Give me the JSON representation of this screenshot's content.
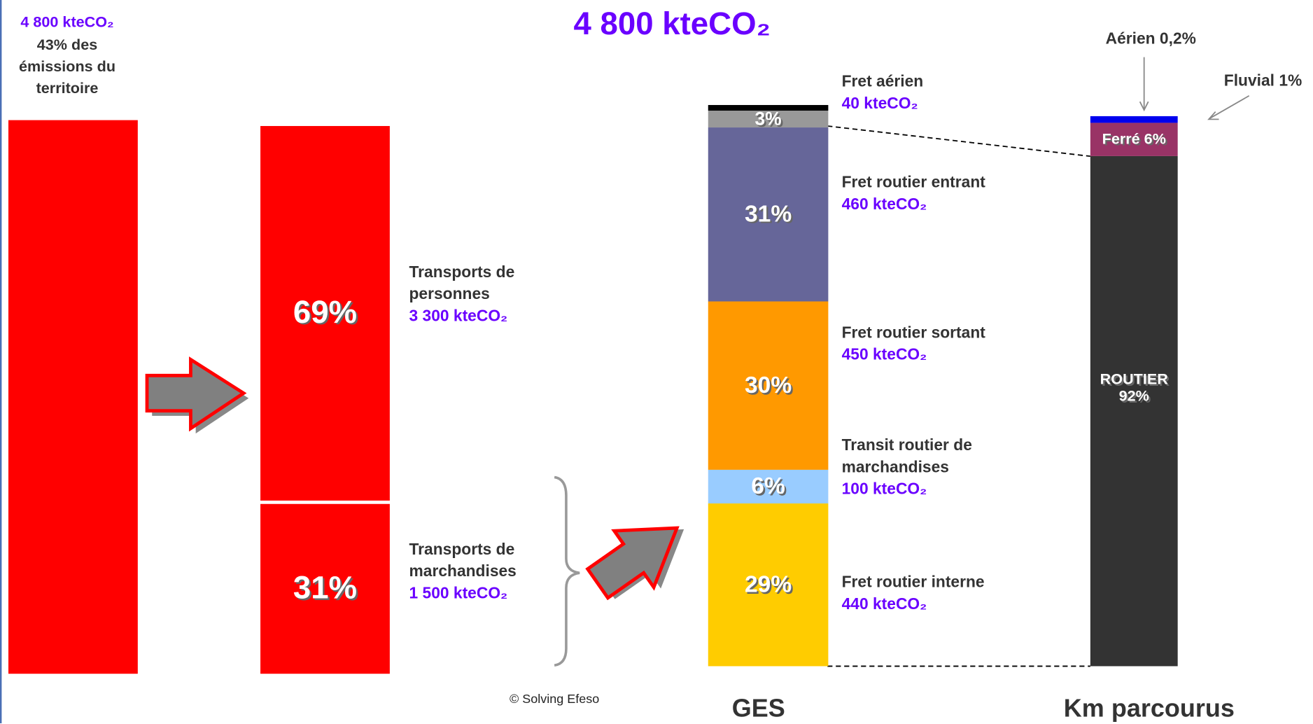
{
  "title": "4 800 kteCO₂",
  "credit": "© Solving Efeso",
  "territory": {
    "amount": "4 800 kteCO₂",
    "text": "43% des\némissions du\nterritoire"
  },
  "chart_data": [
    {
      "type": "stacked_bar",
      "series": [
        {
          "name": "Transports de\nmarchandises",
          "color": "#ff0000",
          "values": [
            31
          ],
          "value_labels": [
            "31%"
          ],
          "amount": "1 500 kteCO₂"
        },
        {
          "name": "Transports de\npersonnes",
          "color": "#ff0000",
          "values": [
            69
          ],
          "value_labels": [
            "69%"
          ],
          "amount": "3 300 kteCO₂"
        }
      ]
    },
    {
      "type": "stacked_bar",
      "x_label": "GES",
      "series": [
        {
          "name": "Fret routier interne",
          "color": "#ffcc00",
          "values": [
            29
          ],
          "value_labels": [
            "29%"
          ],
          "amount": "440 kteCO₂"
        },
        {
          "name": "Transit routier de\nmarchandises",
          "color": "#99ccff",
          "values": [
            6
          ],
          "value_labels": [
            "6%"
          ],
          "amount": "100 kteCO₂"
        },
        {
          "name": "Fret routier sortant",
          "color": "#ff9900",
          "values": [
            30
          ],
          "value_labels": [
            "30%"
          ],
          "amount": "450 kteCO₂"
        },
        {
          "name": "Fret routier entrant",
          "color": "#666699",
          "values": [
            31
          ],
          "value_labels": [
            "31%"
          ],
          "amount": "460 kteCO₂"
        },
        {
          "name": "Fret aérien",
          "color": "#999999",
          "values": [
            3
          ],
          "value_labels": [
            "3%"
          ],
          "amount": "40 kteCO₂"
        },
        {
          "color": "#000000",
          "values": [
            1
          ]
        }
      ]
    },
    {
      "type": "stacked_bar",
      "x_label": "Km parcourus",
      "series": [
        {
          "color": "#333333",
          "values": [
            92
          ],
          "value_labels": [
            "ROUTIER\n92%"
          ]
        },
        {
          "color": "#993366",
          "values": [
            6
          ],
          "value_labels": [
            "Ferré 6%"
          ]
        },
        {
          "color": "#0000ee",
          "values": [
            1
          ],
          "value_labels": [
            "Fluvial 1%"
          ]
        },
        {
          "color": "#0000ee",
          "values": [
            0.2
          ],
          "value_labels": [
            "Aérien 0,2%"
          ]
        }
      ]
    }
  ]
}
